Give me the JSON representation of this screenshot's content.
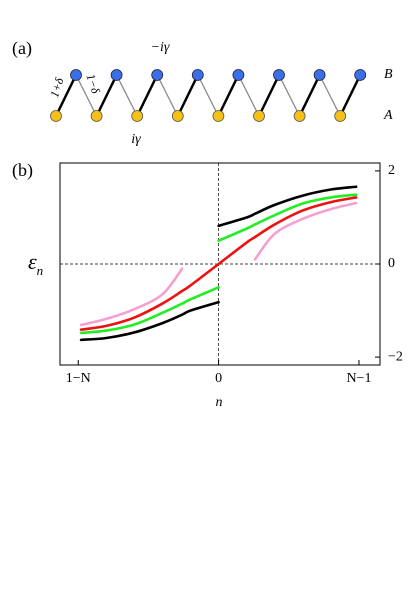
{
  "panel_a": {
    "label": "(a)",
    "intra_left": "1+δ",
    "intra_right": "1−δ",
    "gain": "−iγ",
    "loss": "iγ",
    "row_b": "B",
    "row_a": "A"
  },
  "chart_data": {
    "type": "line",
    "panel_label": "(b)",
    "x_label": "n",
    "y_label": "ε",
    "y_label_sub": "n",
    "x": [
      -0.98,
      -0.8,
      -0.6,
      -0.4,
      -0.26,
      -0.2,
      0,
      0.2,
      0.26,
      0.4,
      0.6,
      0.8,
      0.98
    ],
    "series": [
      {
        "color": "#000000",
        "values": [
          -1.63,
          -1.59,
          -1.47,
          -1.27,
          -1.09,
          -1.0,
          -0.82,
          null,
          null,
          null,
          null,
          null,
          null
        ]
      },
      {
        "color": "#000000",
        "values": [
          null,
          null,
          null,
          null,
          null,
          null,
          0.82,
          1.0,
          1.08,
          1.27,
          1.47,
          1.6,
          1.66
        ]
      },
      {
        "color": "#f4a0d0",
        "values": [
          -1.31,
          -1.18,
          -0.97,
          -0.65,
          -0.1,
          null,
          null,
          null,
          null,
          null,
          null,
          null,
          null
        ]
      },
      {
        "color": "#f4a0d0",
        "values": [
          null,
          null,
          null,
          null,
          null,
          null,
          null,
          null,
          0.1,
          0.65,
          0.97,
          1.18,
          1.31
        ]
      },
      {
        "color": "#22ee22",
        "values": [
          -1.48,
          -1.43,
          -1.3,
          -1.05,
          -0.85,
          -0.76,
          -0.5,
          null,
          null,
          null,
          null,
          null,
          null
        ]
      },
      {
        "color": "#22ee22",
        "values": [
          null,
          null,
          null,
          null,
          null,
          null,
          0.5,
          0.76,
          0.85,
          1.05,
          1.3,
          1.43,
          1.49
        ]
      },
      {
        "color": "#ee1111",
        "values": [
          -1.41,
          -1.33,
          -1.15,
          -0.85,
          -0.58,
          -0.46,
          0,
          0.46,
          0.58,
          0.85,
          1.15,
          1.33,
          1.43
        ]
      }
    ],
    "xlim": [
      -1.13,
      1.15
    ],
    "ylim": [
      -2.17,
      2.17
    ],
    "xticks": [
      {
        "value": -1,
        "label": "1−N"
      },
      0,
      {
        "value": 1,
        "label": "N−1"
      }
    ],
    "yticks": [
      2,
      0,
      {
        "value": -2,
        "label": "−2"
      }
    ],
    "zero_lines": true
  }
}
